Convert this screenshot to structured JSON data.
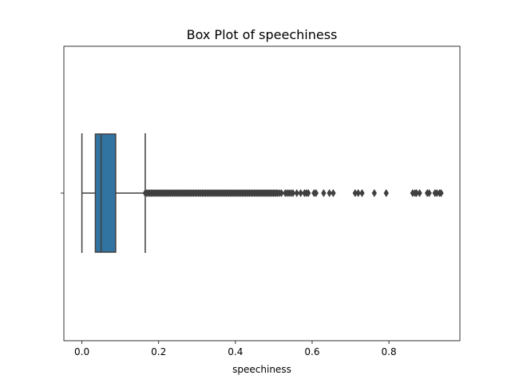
{
  "chart_data": {
    "type": "box",
    "title": "Box Plot of speechiness",
    "xlabel": "speechiness",
    "ylabel": "",
    "orientation": "horizontal",
    "xlim": [
      -0.047,
      0.985
    ],
    "xticks": [
      0.0,
      0.2,
      0.4,
      0.6,
      0.8
    ],
    "xtick_labels": [
      "0.0",
      "0.2",
      "0.4",
      "0.6",
      "0.8"
    ],
    "box": {
      "whisker_low": 0.0,
      "q1": 0.035,
      "median": 0.05,
      "q3": 0.088,
      "whisker_high": 0.165
    },
    "outliers_dense_range": [
      0.165,
      0.51
    ],
    "outliers": [
      0.515,
      0.52,
      0.53,
      0.535,
      0.54,
      0.545,
      0.55,
      0.56,
      0.57,
      0.58,
      0.585,
      0.59,
      0.605,
      0.61,
      0.63,
      0.645,
      0.655,
      0.712,
      0.72,
      0.73,
      0.762,
      0.793,
      0.862,
      0.868,
      0.872,
      0.88,
      0.9,
      0.905,
      0.92,
      0.925,
      0.932,
      0.936
    ],
    "colors": {
      "box": "#3274a1",
      "line": "#3f3f3f"
    }
  }
}
